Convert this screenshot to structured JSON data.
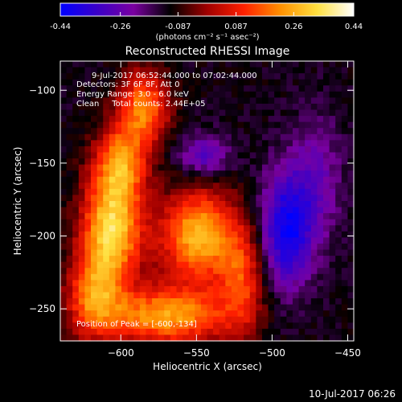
{
  "colorbar": {
    "min": -0.44,
    "max": 0.44,
    "tick_labels": [
      "-0.44",
      "-0.26",
      "-0.087",
      "0.087",
      "0.26",
      "0.44"
    ],
    "unit_label": "(photons cm⁻² s⁻¹ asec⁻²)",
    "colors": [
      "#0000ff",
      "#3a00c8",
      "#7a00a0",
      "#000000",
      "#a00000",
      "#ff2000",
      "#ff9000",
      "#ffe040",
      "#ffffff"
    ]
  },
  "chart_data": {
    "type": "heatmap",
    "title": "Reconstructed RHESSI Image",
    "xlabel": "Heliocentric X (arcsec)",
    "ylabel": "Heliocentric Y (arcsec)",
    "xlim": [
      -640,
      -446
    ],
    "ylim": [
      -272,
      -80
    ],
    "x_ticks": [
      -600,
      -550,
      -500,
      -450
    ],
    "y_ticks": [
      -100,
      -150,
      -200,
      -250
    ],
    "x_tick_labels": [
      "−600",
      "−550",
      "−500",
      "−450"
    ],
    "y_tick_labels": [
      "−100",
      "−150",
      "−200",
      "−250"
    ],
    "info_lines": [
      "9-Jul-2017 06:52:44.000 to 07:02:44.000",
      "Detectors: 3F 6F 8F, Att 0",
      "Energy Range: 3.0 - 6.0 keV",
      "Clean     Total counts: 2.44E+05"
    ],
    "peak_label": "Position of Peak = [-600,-134]",
    "peak": [
      -600,
      -134
    ],
    "sources": [
      {
        "x": -606,
        "y": -195,
        "amp": 0.44,
        "sx": 14,
        "sy": 26
      },
      {
        "x": -585,
        "y": -112,
        "amp": 0.32,
        "sx": 12,
        "sy": 18
      },
      {
        "x": -548,
        "y": -200,
        "amp": 0.4,
        "sx": 18,
        "sy": 22
      },
      {
        "x": -570,
        "y": -255,
        "amp": 0.36,
        "sx": 30,
        "sy": 14
      },
      {
        "x": -600,
        "y": -150,
        "amp": 0.3,
        "sx": 12,
        "sy": 18
      },
      {
        "x": -520,
        "y": -230,
        "amp": 0.22,
        "sx": 10,
        "sy": 24
      },
      {
        "x": -618,
        "y": -240,
        "amp": 0.28,
        "sx": 12,
        "sy": 20
      },
      {
        "x": -490,
        "y": -195,
        "amp": -0.3,
        "sx": 12,
        "sy": 28
      },
      {
        "x": -545,
        "y": -145,
        "amp": -0.18,
        "sx": 12,
        "sy": 10
      },
      {
        "x": -470,
        "y": -160,
        "amp": -0.12,
        "sx": 12,
        "sy": 30
      }
    ],
    "background": -0.12
  },
  "footer": {
    "timestamp": "10-Jul-2017 06:26"
  }
}
